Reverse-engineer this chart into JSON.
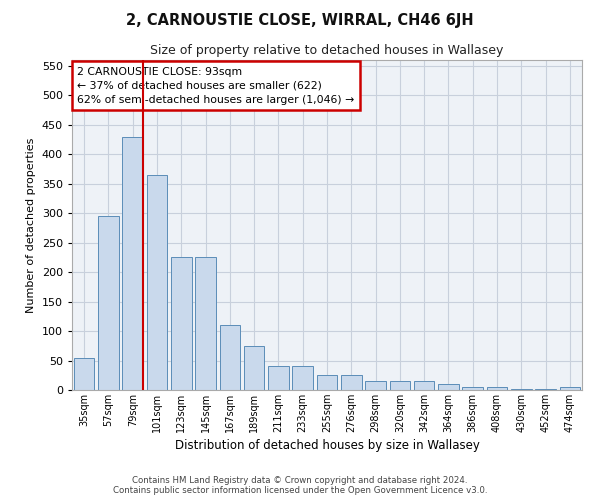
{
  "title": "2, CARNOUSTIE CLOSE, WIRRAL, CH46 6JH",
  "subtitle": "Size of property relative to detached houses in Wallasey",
  "xlabel": "Distribution of detached houses by size in Wallasey",
  "ylabel": "Number of detached properties",
  "categories": [
    "35sqm",
    "57sqm",
    "79sqm",
    "101sqm",
    "123sqm",
    "145sqm",
    "167sqm",
    "189sqm",
    "211sqm",
    "233sqm",
    "255sqm",
    "276sqm",
    "298sqm",
    "320sqm",
    "342sqm",
    "364sqm",
    "386sqm",
    "408sqm",
    "430sqm",
    "452sqm",
    "474sqm"
  ],
  "values": [
    55,
    295,
    430,
    365,
    225,
    225,
    110,
    75,
    40,
    40,
    25,
    25,
    15,
    15,
    15,
    10,
    5,
    5,
    2,
    2,
    5
  ],
  "bar_color": "#c9d9ec",
  "bar_edge_color": "#5b8db8",
  "grid_color": "#c8d0dc",
  "background_color": "#eef2f7",
  "vline_color": "#cc0000",
  "vline_pos": 2.43,
  "annotation_text": "2 CARNOUSTIE CLOSE: 93sqm\n← 37% of detached houses are smaller (622)\n62% of semi-detached houses are larger (1,046) →",
  "annotation_box_color": "#ffffff",
  "annotation_box_edge": "#cc0000",
  "footer1": "Contains HM Land Registry data © Crown copyright and database right 2024.",
  "footer2": "Contains public sector information licensed under the Open Government Licence v3.0.",
  "ylim": [
    0,
    560
  ],
  "yticks": [
    0,
    50,
    100,
    150,
    200,
    250,
    300,
    350,
    400,
    450,
    500,
    550
  ]
}
